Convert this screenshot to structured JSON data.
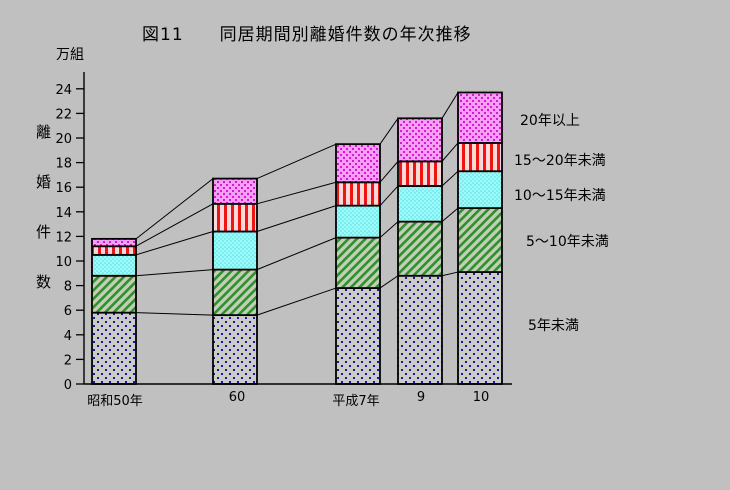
{
  "title": "図11　　同居期間別離婚件数の年次推移",
  "y_axis": {
    "unit": "万組",
    "label": "離婚件数"
  },
  "x_axis": {
    "categories": [
      "昭和50年",
      "60",
      "平成7年",
      "9",
      "10"
    ]
  },
  "legend": {
    "items": [
      "20年以上",
      "15～20年未満",
      "10～15年未満",
      "5～10年未満",
      "5年未満"
    ]
  },
  "chart_data": {
    "type": "bar",
    "subtype": "stacked-bar",
    "title": "図11　同居期間別離婚件数の年次推移",
    "ylabel": "離婚件数",
    "y_unit": "万組",
    "categories": [
      "昭和50年",
      "60",
      "平成7年",
      "9",
      "10"
    ],
    "series": [
      {
        "name": "5年未満",
        "pattern": "navy-dots",
        "values": [
          5.8,
          5.6,
          7.8,
          8.8,
          9.1
        ]
      },
      {
        "name": "5～10年未満",
        "pattern": "green-hatch",
        "values": [
          3.0,
          3.7,
          4.1,
          4.4,
          5.2
        ]
      },
      {
        "name": "10～15年未満",
        "pattern": "cyan-check",
        "values": [
          1.7,
          3.1,
          2.6,
          2.9,
          3.0
        ]
      },
      {
        "name": "15～20年未満",
        "pattern": "red-stripes",
        "values": [
          0.7,
          2.25,
          1.9,
          2.0,
          2.3
        ]
      },
      {
        "name": "20年以上",
        "pattern": "magenta-dots",
        "values": [
          0.6,
          2.05,
          3.1,
          3.5,
          4.1
        ]
      }
    ],
    "totals": [
      11.8,
      16.7,
      19.5,
      21.6,
      23.7
    ],
    "ylim": [
      0,
      24
    ],
    "ytick_step": 2,
    "grid": false,
    "legend_position": "right",
    "connectors_between_bars": true
  },
  "colors": {
    "background": "#c0c0c0",
    "axis": "#000000",
    "dot_bg": "#cbcbcb",
    "dot_navy": "#1a1a8c",
    "hatch_bg": "#c2cfb4",
    "hatch_green": "#2e8f2e",
    "cyan_a": "#7deded",
    "cyan_b": "#9ffcfc",
    "stripe_bg": "#ffd9d9",
    "stripe_red": "#ee1515",
    "magenta_bg": "#ff9dff",
    "magenta_dot": "#cf1fcf"
  }
}
